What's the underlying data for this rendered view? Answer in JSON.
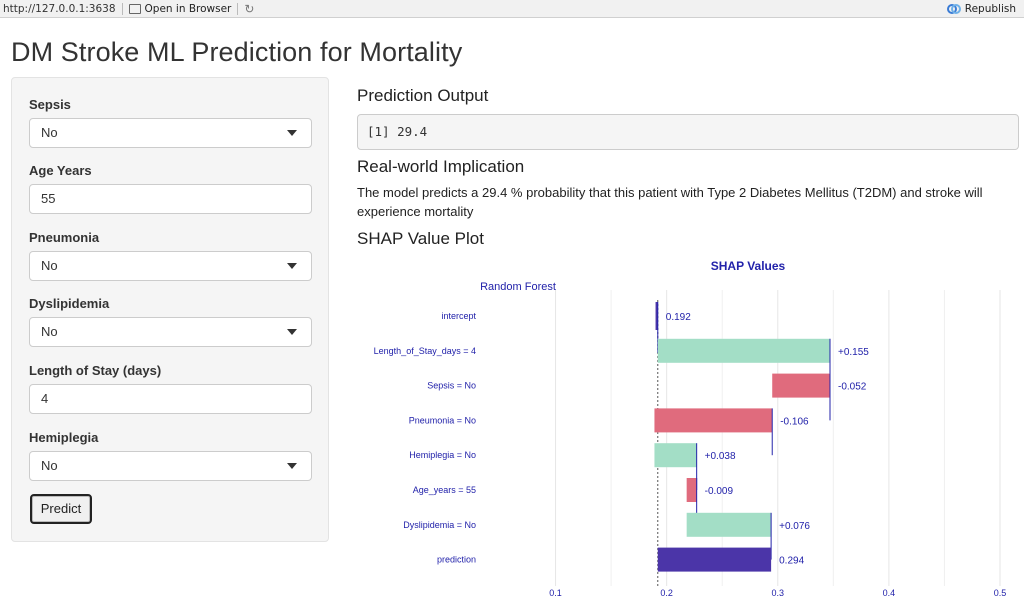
{
  "topbar": {
    "url": "http://127.0.0.1:3638",
    "open_label": "Open in Browser",
    "republish_label": "Republish"
  },
  "title": "DM Stroke ML Prediction for Mortality",
  "sidebar": {
    "fields": [
      {
        "label": "Sepsis",
        "type": "select",
        "value": "No"
      },
      {
        "label": "Age Years",
        "type": "input",
        "value": "55"
      },
      {
        "label": "Pneumonia",
        "type": "select",
        "value": "No"
      },
      {
        "label": "Dyslipidemia",
        "type": "select",
        "value": "No"
      },
      {
        "label": "Length of Stay (days)",
        "type": "input",
        "value": "4"
      },
      {
        "label": "Hemiplegia",
        "type": "select",
        "value": "No"
      }
    ],
    "predict_label": "Predict"
  },
  "main": {
    "output_heading": "Prediction Output",
    "output_value": "[1] 29.4",
    "implication_heading": "Real-world Implication",
    "implication_text": "The model predicts a 29.4 % probability that this patient with Type 2 Diabetes Mellitus (T2DM) and stroke will experience mortality",
    "shap_heading": "SHAP Value Plot"
  },
  "colors": {
    "positive": "#a3dec6",
    "negative": "#e06b7d",
    "prediction": "#4b35a8",
    "label_text": "#2222aa"
  },
  "chart_data": {
    "type": "bar",
    "title": "SHAP Values",
    "subtitle": "Random Forest",
    "xlim": [
      0.05,
      0.5
    ],
    "xticks": [
      0.1,
      0.2,
      0.3,
      0.4,
      0.5
    ],
    "baseline": 0.192,
    "rows": [
      {
        "label": "intercept",
        "kind": "intercept",
        "start": 0.19,
        "end": 0.192,
        "value_label": "0.192"
      },
      {
        "label": "Length_of_Stay_days = 4",
        "kind": "positive",
        "start": 0.192,
        "end": 0.347,
        "value_label": "+0.155"
      },
      {
        "label": "Sepsis = No",
        "kind": "negative",
        "start": 0.295,
        "end": 0.347,
        "value_label": "-0.052"
      },
      {
        "label": "Pneumonia = No",
        "kind": "negative",
        "start": 0.189,
        "end": 0.295,
        "value_label": "-0.106"
      },
      {
        "label": "Hemiplegia = No",
        "kind": "positive",
        "start": 0.189,
        "end": 0.227,
        "value_label": "+0.038"
      },
      {
        "label": "Age_years = 55",
        "kind": "negative",
        "start": 0.218,
        "end": 0.227,
        "value_label": "-0.009"
      },
      {
        "label": "Dyslipidemia = No",
        "kind": "positive",
        "start": 0.218,
        "end": 0.294,
        "value_label": "+0.076"
      },
      {
        "label": "prediction",
        "kind": "prediction",
        "start": 0.192,
        "end": 0.294,
        "value_label": "0.294"
      }
    ]
  }
}
